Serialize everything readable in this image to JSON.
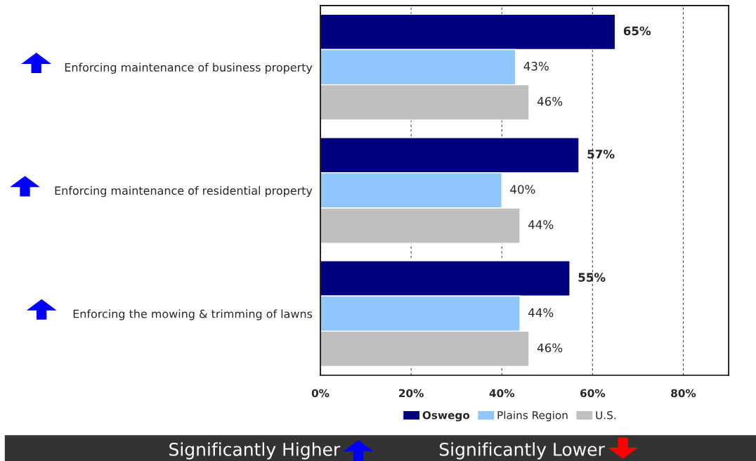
{
  "chart_data": {
    "type": "bar",
    "orientation": "horizontal",
    "categories": [
      "Enforcing maintenance of business property",
      "Enforcing maintenance of residential property",
      "Enforcing the mowing & trimming of lawns"
    ],
    "series": [
      {
        "name": "Oswego",
        "color": "#000080",
        "values": [
          65,
          57,
          55
        ],
        "value_labels": [
          "65%",
          "57%",
          "55%"
        ]
      },
      {
        "name": "Plains Region",
        "color": "#8fc7fc",
        "values": [
          43,
          40,
          44
        ],
        "value_labels": [
          "43%",
          "40%",
          "44%"
        ]
      },
      {
        "name": "U.S.",
        "color": "#c0c0c0",
        "values": [
          46,
          44,
          46
        ],
        "value_labels": [
          "46%",
          "44%",
          "46%"
        ]
      }
    ],
    "xlim": [
      0,
      90
    ],
    "xticks": [
      {
        "value": 0,
        "label": "0%"
      },
      {
        "value": 20,
        "label": "20%"
      },
      {
        "value": 40,
        "label": "40%"
      },
      {
        "value": 60,
        "label": "60%"
      },
      {
        "value": 80,
        "label": "80%"
      }
    ],
    "grid": "x",
    "legend": "bottom",
    "annotations": [
      "Significantly Higher",
      "Significantly Lower"
    ]
  }
}
